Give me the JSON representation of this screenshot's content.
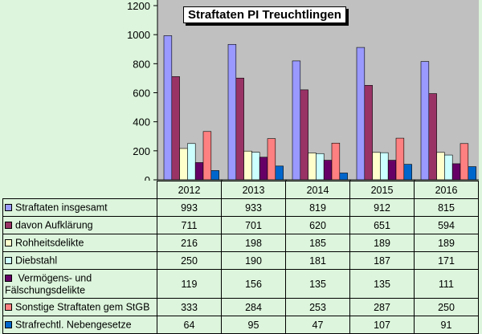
{
  "chart_data": {
    "type": "bar",
    "title": "Straftaten PI Treuchtlingen",
    "categories": [
      "2012",
      "2013",
      "2014",
      "2015",
      "2016"
    ],
    "ylim": [
      0,
      1200
    ],
    "yticks": [
      "0",
      "200",
      "400",
      "600",
      "800",
      "1000",
      "1200"
    ],
    "grid": false,
    "legend": "data-table-below",
    "series": [
      {
        "name": "Straftaten insgesamt",
        "color": "#9999ff",
        "values": [
          993,
          933,
          819,
          912,
          815
        ]
      },
      {
        "name": "davon Aufklärung",
        "color": "#993366",
        "values": [
          711,
          701,
          620,
          651,
          594
        ]
      },
      {
        "name": "Rohheitsdelikte",
        "color": "#ffffcc",
        "values": [
          216,
          198,
          185,
          189,
          189
        ]
      },
      {
        "name": "Diebstahl",
        "color": "#ccffff",
        "values": [
          250,
          190,
          181,
          187,
          171
        ]
      },
      {
        "name_lines": [
          "Vermögens- und",
          "Fälschungsdelikte"
        ],
        "color": "#660066",
        "values": [
          119,
          156,
          135,
          135,
          111
        ]
      },
      {
        "name": "Sonstige Straftaten gem StGB",
        "color": "#ff8080",
        "values": [
          333,
          284,
          253,
          287,
          250
        ]
      },
      {
        "name": "Strafrechtl. Nebengesetze",
        "color": "#0066cc",
        "values": [
          64,
          95,
          47,
          107,
          91
        ]
      }
    ]
  }
}
